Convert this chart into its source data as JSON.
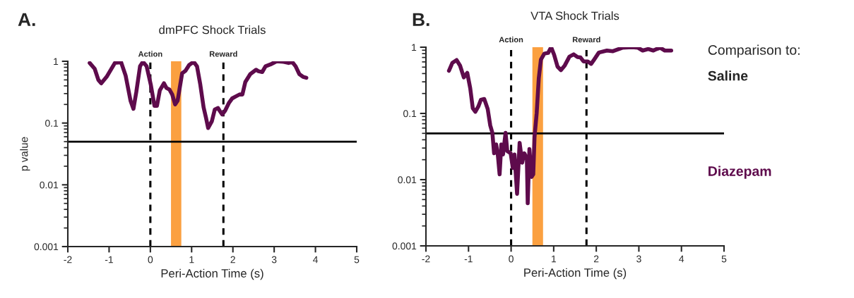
{
  "chart_data": [
    {
      "type": "line",
      "title": "dmPFC Shock Trials",
      "xlabel": "Peri-Action Time (s)",
      "ylabel": "p value",
      "log": "y",
      "xlim": [
        -2,
        5
      ],
      "xticks": [
        -2,
        -1,
        0,
        1,
        2,
        3,
        4,
        5
      ],
      "ylim": [
        0.001,
        1
      ],
      "yticks": [
        0.001,
        0.01,
        0.1,
        1
      ],
      "grid": false,
      "legend": false,
      "x": [
        -1.47,
        -1.35,
        -1.26,
        -1.19,
        -1.06,
        -0.86,
        -0.71,
        -0.6,
        -0.48,
        -0.41,
        -0.34,
        -0.25,
        -0.18,
        -0.09,
        0.01,
        0.1,
        0.16,
        0.23,
        0.33,
        0.39,
        0.46,
        0.53,
        0.6,
        0.66,
        0.77,
        0.85,
        0.94,
        1.05,
        1.13,
        1.21,
        1.29,
        1.35,
        1.4,
        1.49,
        1.56,
        1.64,
        1.68,
        1.74,
        1.81,
        1.9,
        1.98,
        2.07,
        2.16,
        2.23,
        2.3,
        2.42,
        2.56,
        2.62,
        2.71,
        2.79,
        2.91,
        3.06,
        3.23,
        3.35,
        3.44,
        3.52,
        3.61,
        3.7,
        3.78
      ],
      "series": [
        {
          "color": "#5e0b4c",
          "values": [
            0.94,
            0.76,
            0.5,
            0.44,
            0.56,
            0.94,
            0.97,
            0.59,
            0.23,
            0.17,
            0.32,
            0.83,
            0.98,
            0.83,
            0.42,
            0.19,
            0.19,
            0.34,
            0.44,
            0.37,
            0.35,
            0.29,
            0.2,
            0.23,
            0.64,
            0.7,
            0.87,
            0.98,
            0.83,
            0.42,
            0.18,
            0.12,
            0.083,
            0.107,
            0.165,
            0.175,
            0.158,
            0.138,
            0.158,
            0.21,
            0.25,
            0.27,
            0.29,
            0.29,
            0.46,
            0.62,
            0.73,
            0.69,
            0.67,
            0.83,
            0.89,
            1.0,
            0.98,
            0.94,
            0.97,
            0.83,
            0.62,
            0.56,
            0.54
          ]
        }
      ],
      "ref_lines": [
        {
          "axis": "y",
          "value": 0.05,
          "color": "#000000",
          "line_style": "solid"
        },
        {
          "axis": "x",
          "value": 0,
          "label": "Action",
          "color": "#000000",
          "line_style": "dashed"
        },
        {
          "axis": "x",
          "value": 1.77,
          "label": "Reward",
          "color": "#000000",
          "line_style": "dashed"
        }
      ],
      "bands": [
        {
          "axis": "x",
          "from": 0.5,
          "to": 0.75,
          "color": "#fba040"
        }
      ],
      "annotations": [
        "A."
      ]
    },
    {
      "type": "line",
      "title": "VTA Shock Trials",
      "xlabel": "Peri-Action Time (s)",
      "log": "y",
      "xlim": [
        -2,
        5
      ],
      "xticks": [
        -2,
        -1,
        0,
        1,
        2,
        3,
        4,
        5
      ],
      "ylim": [
        0.001,
        1
      ],
      "yticks": [
        0.001,
        0.01,
        0.1,
        1
      ],
      "grid": false,
      "legend": "right",
      "legend_title": "Comparison to:",
      "x": [
        -1.46,
        -1.38,
        -1.28,
        -1.2,
        -1.11,
        -1.03,
        -0.96,
        -0.9,
        -0.84,
        -0.77,
        -0.71,
        -0.63,
        -0.55,
        -0.49,
        -0.44,
        -0.4,
        -0.35,
        -0.31,
        -0.27,
        -0.23,
        -0.19,
        -0.13,
        -0.09,
        -0.01,
        0.04,
        0.08,
        0.14,
        0.2,
        0.26,
        0.31,
        0.37,
        0.39,
        0.43,
        0.48,
        0.52,
        0.55,
        0.6,
        0.65,
        0.7,
        0.78,
        0.87,
        0.94,
        1.01,
        1.09,
        1.17,
        1.26,
        1.37,
        1.47,
        1.56,
        1.63,
        1.7,
        1.8,
        1.88,
        1.95,
        2.06,
        2.25,
        2.39,
        2.61,
        2.84,
        2.98,
        3.09,
        3.22,
        3.34,
        3.42,
        3.5,
        3.61,
        3.76
      ],
      "series": [
        {
          "name": "Diazepam",
          "color": "#5e0b4c",
          "values": [
            0.44,
            0.58,
            0.64,
            0.53,
            0.35,
            0.41,
            0.24,
            0.12,
            0.106,
            0.127,
            0.16,
            0.165,
            0.117,
            0.066,
            0.051,
            0.025,
            0.034,
            0.023,
            0.012,
            0.034,
            0.024,
            0.051,
            0.027,
            0.025,
            0.015,
            0.024,
            0.0061,
            0.036,
            0.018,
            0.025,
            0.021,
            0.0044,
            0.029,
            0.011,
            0.012,
            0.044,
            0.1,
            0.34,
            0.65,
            0.8,
            0.82,
            1.0,
            0.77,
            0.51,
            0.45,
            0.53,
            0.72,
            0.78,
            0.71,
            0.7,
            0.61,
            0.61,
            0.56,
            0.65,
            0.83,
            0.89,
            0.87,
            0.98,
            1.0,
            0.98,
            0.89,
            0.94,
            0.89,
            0.94,
            0.98,
            0.89,
            0.89
          ]
        }
      ],
      "ref_lines": [
        {
          "axis": "y",
          "value": 0.05,
          "color": "#000000",
          "line_style": "solid"
        },
        {
          "axis": "x",
          "value": 0,
          "label": "Action",
          "color": "#000000",
          "line_style": "dashed"
        },
        {
          "axis": "x",
          "value": 1.77,
          "label": "Reward",
          "color": "#000000",
          "line_style": "dashed"
        }
      ],
      "bands": [
        {
          "axis": "x",
          "from": 0.5,
          "to": 0.75,
          "color": "#fba040"
        }
      ],
      "annotations": [
        "B.",
        "Saline"
      ]
    }
  ]
}
